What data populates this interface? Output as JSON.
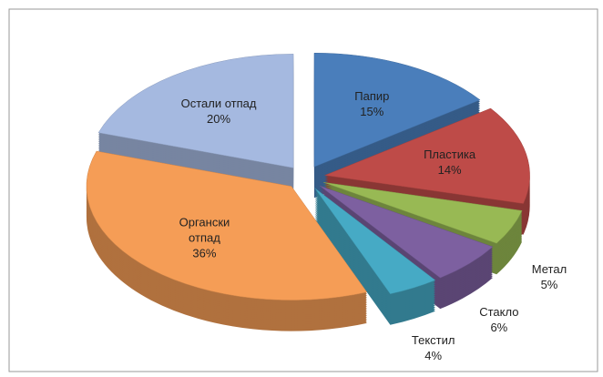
{
  "chart_data": {
    "type": "pie3d",
    "categories": [
      "Папир",
      "Пластика",
      "Метал",
      "Стакло",
      "Текстил",
      "Органски отпад",
      "Остали отпад"
    ],
    "values": [
      15,
      14,
      5,
      6,
      4,
      36,
      20
    ],
    "value_labels": [
      "15%",
      "14%",
      "5%",
      "6%",
      "4%",
      "36%",
      "20%"
    ],
    "colors": [
      "#4a7ebb",
      "#be4b48",
      "#98b954",
      "#7d60a0",
      "#46aac5",
      "#f59d56",
      "#a5b9e0"
    ]
  }
}
